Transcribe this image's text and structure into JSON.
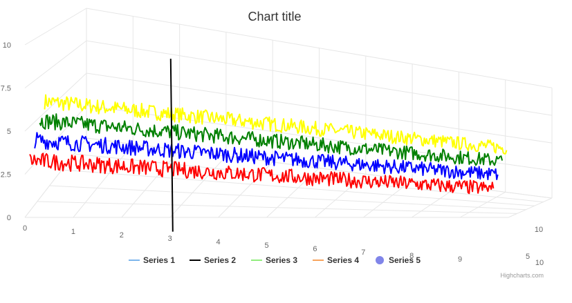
{
  "chart_data": {
    "type": "line",
    "subtype": "3d",
    "title": "Chart title",
    "xlabel": "",
    "ylabel": "",
    "xlim": [
      0,
      10
    ],
    "ylim": [
      0,
      10
    ],
    "zlim": [
      0,
      5
    ],
    "x_ticks": [
      "0",
      "1",
      "2",
      "3",
      "4",
      "5",
      "6",
      "7",
      "8",
      "9",
      "10"
    ],
    "y_ticks": [
      "0",
      "2.5",
      "5",
      "7.5",
      "10"
    ],
    "z_ticks": [
      "5",
      "10"
    ],
    "grid": true,
    "legend_position": "bottom",
    "series": [
      {
        "name": "Series 1",
        "legend_color": "#7cb5ec",
        "color": "#ff0000",
        "level": 3.0,
        "noise": 0.5,
        "z_from": 0,
        "z_to": 10
      },
      {
        "name": "Series 2",
        "legend_color": "#000000",
        "color": "#000000",
        "vertical_at_x": 3,
        "y_from": 0,
        "y_to": 8.5
      },
      {
        "name": "Series 3",
        "legend_color": "#90ed7d",
        "color": "#0000ff",
        "level": 3.9,
        "noise": 0.5,
        "z_from": 0,
        "z_to": 10
      },
      {
        "name": "Series 4",
        "legend_color": "#f7a35c",
        "color": "#008000",
        "level": 4.8,
        "noise": 0.5,
        "z_from": 0,
        "z_to": 10
      },
      {
        "name": "Series 5",
        "legend_color": "#8085e9",
        "color": "#ffff00",
        "level": 5.7,
        "noise": 0.5,
        "z_from": 0,
        "z_to": 10
      }
    ],
    "credits": "Highcharts.com"
  }
}
